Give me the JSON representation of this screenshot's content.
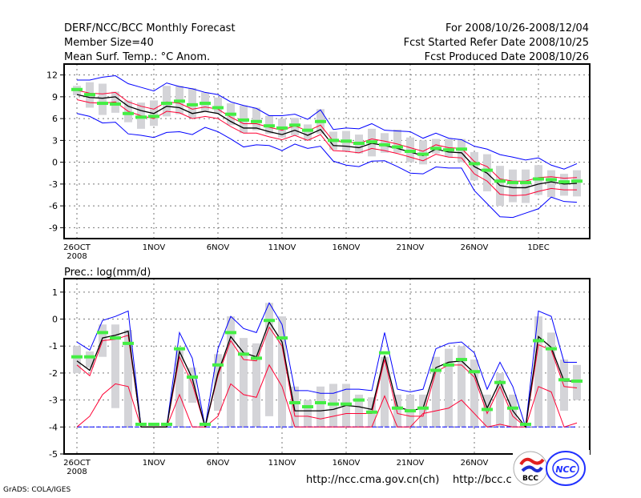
{
  "header": {
    "title": "DERF/NCC/BCC Monthly Forecast",
    "member_size": "Member Size=40",
    "variable": "Mean Surf. Temp.: °C Anom.",
    "period": "For 2008/10/26-2008/12/04",
    "refer_date": "Fcst Started Refer Date 2008/10/25",
    "produced_date": "Fcst Produced Date 2008/10/26"
  },
  "footer": {
    "url1": "http://ncc.cma.gov.cn(ch)",
    "url2": "http://bcc.c",
    "grads": "GrADS: COLA/IGES",
    "logo_bcc": "BCC",
    "logo_ncc": "NCC"
  },
  "colors": {
    "max_min": "#0000ff",
    "spread": "#ff0033",
    "mean": "#000000",
    "median": "#44ee44",
    "bars": "#d4d4d8"
  },
  "chart_data": [
    {
      "type": "line",
      "title": "Mean Surf. Temp.: °C Anom.",
      "x_start": "2008-10-26",
      "n_days": 40,
      "xticks": [
        {
          "day": 0,
          "label": "26OCT",
          "sub": "2008"
        },
        {
          "day": 6,
          "label": "1NOV"
        },
        {
          "day": 11,
          "label": "6NOV"
        },
        {
          "day": 16,
          "label": "11NOV"
        },
        {
          "day": 21,
          "label": "16NOV"
        },
        {
          "day": 26,
          "label": "21NOV"
        },
        {
          "day": 31,
          "label": "26NOV"
        },
        {
          "day": 36,
          "label": "1DEC"
        }
      ],
      "ylim": [
        -10.5,
        13.5
      ],
      "yticks": [
        12,
        9,
        6,
        3,
        0,
        -3,
        -6,
        -9
      ],
      "ytick_labels": [
        "12",
        "9",
        "6",
        "3",
        "0",
        "-3",
        "-6",
        "-9"
      ],
      "grid": true,
      "series": {
        "mean": [
          9.3,
          8.9,
          8.8,
          9.0,
          7.7,
          7.1,
          6.7,
          7.7,
          7.5,
          6.7,
          7.0,
          6.7,
          5.6,
          4.7,
          4.7,
          4.2,
          3.8,
          4.4,
          3.7,
          4.5,
          2.3,
          2.2,
          2.0,
          2.6,
          2.3,
          1.9,
          1.4,
          0.9,
          1.8,
          1.4,
          1.3,
          -0.6,
          -1.5,
          -3.2,
          -3.5,
          -3.5,
          -3.0,
          -2.7,
          -3.0,
          -2.9
        ],
        "spread_high": [
          9.9,
          9.5,
          9.4,
          9.6,
          8.3,
          7.7,
          7.3,
          8.3,
          8.1,
          7.3,
          7.6,
          7.3,
          6.2,
          5.3,
          5.3,
          4.8,
          4.4,
          5.0,
          4.3,
          5.1,
          2.9,
          2.8,
          2.6,
          3.2,
          2.9,
          2.5,
          2.0,
          1.5,
          2.4,
          2.0,
          1.9,
          0.1,
          -0.6,
          -2.3,
          -2.6,
          -2.6,
          -2.1,
          -2.0,
          -2.2,
          -2.1
        ],
        "spread_low": [
          8.6,
          8.2,
          8.1,
          8.3,
          7.0,
          6.4,
          6.0,
          7.0,
          6.8,
          6.0,
          6.3,
          6.0,
          4.9,
          4.0,
          4.0,
          3.5,
          3.1,
          3.7,
          3.0,
          3.8,
          1.6,
          1.5,
          1.3,
          1.9,
          1.6,
          1.2,
          0.7,
          0.2,
          1.1,
          0.7,
          0.6,
          -1.6,
          -2.6,
          -4.4,
          -4.6,
          -4.5,
          -4.0,
          -3.6,
          -3.8,
          -3.8
        ],
        "max": [
          11.3,
          11.3,
          11.7,
          11.9,
          10.8,
          10.3,
          9.8,
          10.9,
          10.4,
          10.1,
          9.6,
          9.3,
          8.3,
          7.8,
          7.4,
          6.4,
          6.4,
          6.6,
          5.9,
          7.2,
          4.5,
          4.7,
          4.6,
          5.3,
          4.4,
          4.3,
          4.2,
          3.3,
          4.0,
          3.3,
          3.1,
          2.2,
          1.8,
          1.05,
          0.7,
          0.3,
          0.6,
          -0.4,
          -0.95,
          -0.2
        ],
        "min": [
          6.7,
          6.3,
          5.4,
          5.5,
          3.9,
          3.7,
          3.4,
          4.1,
          4.2,
          3.8,
          4.8,
          4.2,
          3.2,
          2.1,
          2.4,
          2.3,
          1.6,
          2.5,
          1.9,
          2.2,
          0.15,
          -0.4,
          -0.6,
          0.15,
          0.2,
          -0.6,
          -1.5,
          -1.6,
          -0.65,
          -0.8,
          -0.8,
          -3.9,
          -5.7,
          -7.5,
          -7.6,
          -7.0,
          -6.4,
          -4.8,
          -5.4,
          -5.5
        ],
        "median": [
          10.0,
          9.3,
          8.1,
          8.0,
          6.7,
          6.2,
          6.3,
          8.1,
          8.4,
          7.9,
          8.1,
          7.5,
          6.6,
          5.8,
          5.6,
          5.0,
          4.7,
          5.1,
          4.4,
          5.6,
          3.0,
          2.9,
          2.6,
          2.8,
          2.4,
          2.1,
          1.5,
          1.1,
          1.9,
          1.7,
          1.8,
          -0.2,
          -1.1,
          -2.6,
          -2.8,
          -2.8,
          -2.3,
          -2.4,
          -2.7,
          -2.6
        ],
        "bar_high": [
          10.5,
          11.0,
          10.8,
          9.7,
          8.5,
          8.2,
          8.5,
          10.5,
          10.5,
          10.2,
          9.6,
          8.9,
          8.1,
          7.8,
          7.5,
          6.4,
          6.0,
          6.1,
          5.2,
          7.3,
          4.2,
          4.3,
          3.8,
          4.6,
          4.0,
          4.5,
          3.4,
          3.0,
          3.2,
          3.2,
          3.2,
          1.4,
          1.1,
          -0.5,
          -1.0,
          -1.0,
          -0.4,
          -1.1,
          -1.6,
          -1.1
        ],
        "bar_low": [
          9.2,
          7.5,
          6.5,
          6.8,
          5.5,
          4.6,
          5.0,
          6.3,
          6.6,
          6.1,
          7.0,
          6.7,
          5.1,
          4.0,
          4.4,
          3.9,
          3.4,
          3.7,
          3.0,
          3.9,
          1.7,
          1.5,
          1.2,
          0.8,
          1.3,
          1.3,
          0.0,
          -0.3,
          1.2,
          0.7,
          0.0,
          -2.5,
          -4.0,
          -6.0,
          -5.5,
          -5.6,
          -4.5,
          -4.8,
          -4.6,
          -4.7
        ]
      }
    },
    {
      "type": "line",
      "title": "Prec.: log(mm/d)",
      "x_start": "2008-10-26",
      "n_days": 40,
      "xticks": [
        {
          "day": 0,
          "label": "26OCT",
          "sub": "2008"
        },
        {
          "day": 6,
          "label": "1NOV"
        },
        {
          "day": 11,
          "label": "6NOV"
        },
        {
          "day": 16,
          "label": "11NOV"
        },
        {
          "day": 21,
          "label": "16NOV"
        },
        {
          "day": 26,
          "label": "21NOV"
        },
        {
          "day": 31,
          "label": "26NOV"
        }
      ],
      "ylim": [
        -5,
        1.5
      ],
      "yticks": [
        1,
        0,
        -1,
        -2,
        -3,
        -4,
        -5
      ],
      "ytick_labels": [
        "1",
        "0",
        "-1",
        "-2",
        "-3",
        "-4",
        "-5"
      ],
      "grid": true,
      "series": {
        "mean": [
          -1.55,
          -1.9,
          -0.7,
          -0.6,
          -0.45,
          -4,
          -4,
          -4,
          -1.2,
          -2.2,
          -4,
          -2.0,
          -0.65,
          -1.25,
          -1.4,
          -0.1,
          -0.85,
          -3.4,
          -3.4,
          -3.4,
          -3.35,
          -3.2,
          -3.25,
          -3.35,
          -1.35,
          -3.25,
          -3.4,
          -3.3,
          -1.8,
          -1.6,
          -1.55,
          -2.0,
          -3.3,
          -2.3,
          -3.4,
          -4,
          -0.65,
          -1.05,
          -2.3,
          -2.3
        ],
        "spread_high": [
          -1.7,
          -2.1,
          -0.8,
          -0.75,
          -0.6,
          -4,
          -4,
          -4,
          -1.4,
          -2.4,
          -4,
          -2.1,
          -0.8,
          -1.5,
          -1.55,
          -0.3,
          -1.0,
          -3.6,
          -3.6,
          -3.7,
          -3.6,
          -3.5,
          -3.5,
          -3.5,
          -1.5,
          -3.5,
          -3.6,
          -3.6,
          -1.95,
          -1.7,
          -1.7,
          -2.15,
          -3.5,
          -2.5,
          -3.6,
          -4,
          -0.95,
          -1.15,
          -2.5,
          -2.55
        ],
        "spread_low": [
          -4,
          -3.6,
          -2.8,
          -2.4,
          -2.5,
          -4,
          -4,
          -4,
          -2.8,
          -4,
          -4,
          -3.6,
          -2.4,
          -2.8,
          -2.9,
          -1.7,
          -2.5,
          -4,
          -4,
          -4,
          -4,
          -4,
          -4,
          -4,
          -2.85,
          -4,
          -4,
          -3.5,
          -3.4,
          -3.3,
          -3.0,
          -3.5,
          -4,
          -3.9,
          -4,
          -4,
          -2.5,
          -2.7,
          -4,
          -3.85
        ],
        "max": [
          -0.85,
          -1.15,
          -0.05,
          0.1,
          0.3,
          -4,
          -4,
          -4,
          -0.5,
          -1.45,
          -4,
          -1.1,
          0.1,
          -0.35,
          -0.5,
          0.6,
          -0.2,
          -2.65,
          -2.65,
          -2.75,
          -2.75,
          -2.6,
          -2.6,
          -2.65,
          -0.5,
          -2.6,
          -2.7,
          -2.6,
          -1.1,
          -0.9,
          -0.85,
          -1.25,
          -2.6,
          -1.6,
          -2.5,
          -4,
          0.3,
          0.1,
          -1.6,
          -1.6
        ],
        "min": [
          -4,
          -4,
          -4,
          -4,
          -4,
          -4,
          -4,
          -4,
          -4,
          -4,
          -4,
          -4,
          -4,
          -4,
          -4,
          -4,
          -4,
          -4,
          -4,
          -4,
          -4,
          -4,
          -4,
          -4,
          -4,
          -4,
          -4,
          -4,
          -4,
          -4,
          -4,
          -4,
          -4,
          -4,
          -4,
          -4,
          -4,
          -4,
          -4,
          -4
        ],
        "median": [
          -1.4,
          -1.4,
          -0.5,
          -0.7,
          -0.9,
          -3.9,
          -3.9,
          -3.9,
          -1.1,
          -2.15,
          -3.9,
          -1.7,
          -0.5,
          -1.3,
          -1.45,
          -0.05,
          -0.7,
          -3.1,
          -3.25,
          -3.1,
          -3.15,
          -3.15,
          -3.0,
          -3.45,
          -1.25,
          -3.3,
          -3.4,
          -3.3,
          -1.9,
          -1.7,
          -1.5,
          -1.95,
          -3.35,
          -2.35,
          -3.3,
          -3.9,
          -0.8,
          -1.1,
          -2.25,
          -2.3
        ],
        "bar_high": [
          -1.0,
          -1.2,
          -0.2,
          -0.2,
          -0.4,
          -4,
          -4,
          -4,
          -1.1,
          -1.8,
          -4,
          -1.3,
          0.1,
          -0.7,
          -0.9,
          0.6,
          0.1,
          -2.5,
          -3.0,
          -2.5,
          -2.4,
          -2.4,
          -2.8,
          -2.9,
          -1.4,
          -2.8,
          -2.8,
          -2.8,
          -1.4,
          -1.1,
          -1.0,
          -1.5,
          -2.8,
          -2.0,
          -2.8,
          -4,
          0.1,
          -0.5,
          -1.5,
          -1.7
        ],
        "bar_low": [
          -2.0,
          -1.8,
          -1.4,
          -3.3,
          -4,
          -4,
          -4,
          -4,
          -4,
          -3.1,
          -4,
          -3.4,
          -4,
          -4,
          -4,
          -3.6,
          -4,
          -4,
          -4,
          -4,
          -4,
          -4,
          -4,
          -4,
          -4,
          -4,
          -4,
          -4,
          -4,
          -4,
          -4,
          -4,
          -4,
          -4,
          -4,
          -4,
          -4,
          -4,
          -3.4,
          -3.0
        ]
      }
    }
  ]
}
